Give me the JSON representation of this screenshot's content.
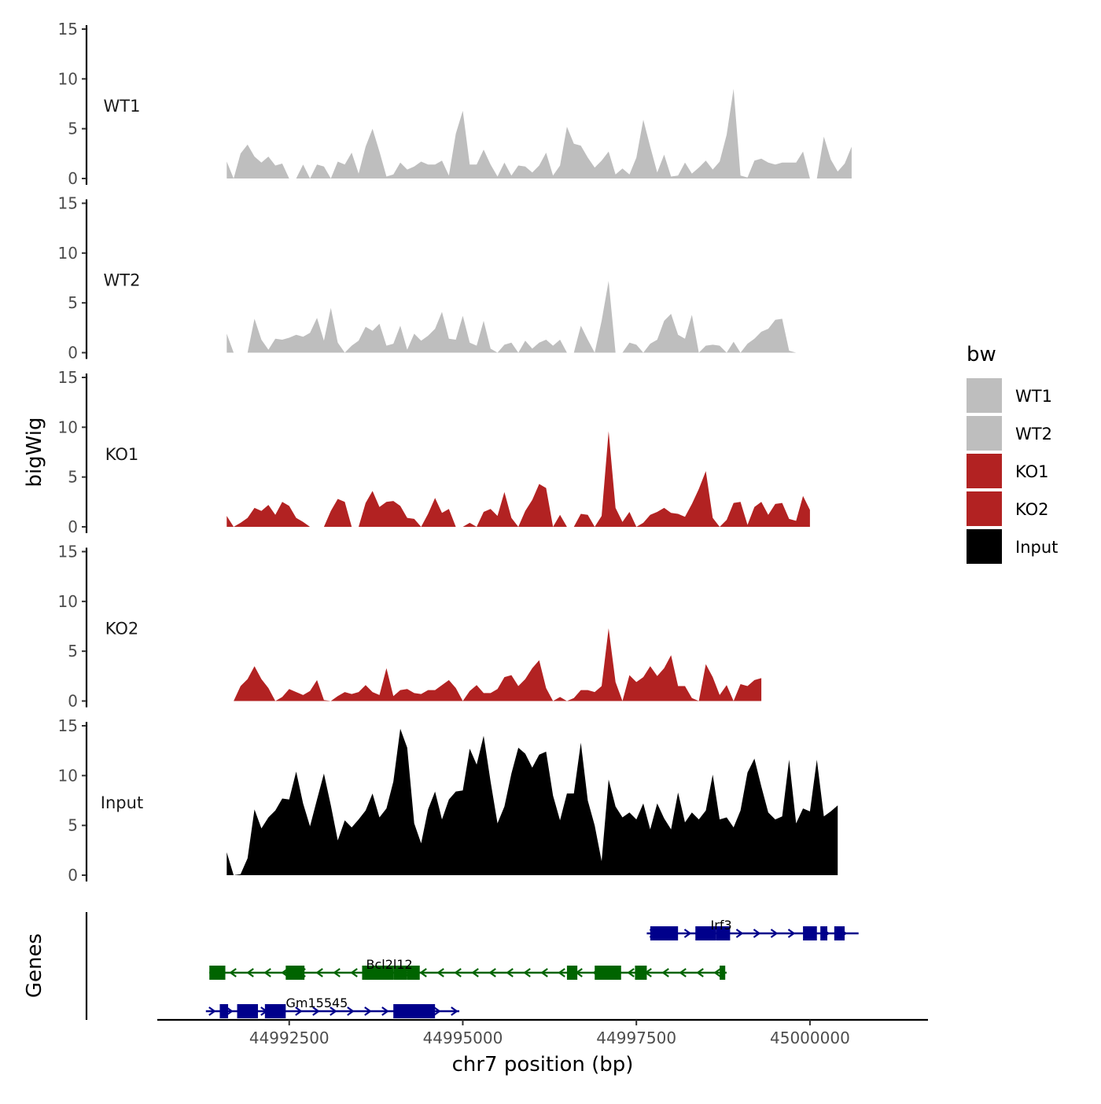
{
  "chart_data": {
    "type": "area",
    "title": "",
    "xlabel": "chr7 position (bp)",
    "ylabel": "bigWig",
    "gene_panel_label": "Genes",
    "xlim": [
      44990600,
      45001700
    ],
    "x_ticks": [
      44992500,
      44995000,
      44997500,
      45000000
    ],
    "x_tick_labels": [
      "44992500",
      "44995000",
      "44997500",
      "45000000"
    ],
    "ylim": [
      0,
      15
    ],
    "y_ticks": [
      0,
      5,
      10,
      15
    ],
    "y_tick_labels": [
      "0",
      "5",
      "10",
      "15"
    ],
    "legend": {
      "title": "bw",
      "position": "right",
      "entries": [
        {
          "label": "WT1",
          "color": "#bebebe"
        },
        {
          "label": "WT2",
          "color": "#bebebe"
        },
        {
          "label": "KO1",
          "color": "#b22222"
        },
        {
          "label": "KO2",
          "color": "#b22222"
        },
        {
          "label": "Input",
          "color": "#000000"
        }
      ]
    },
    "x_start": 44991600,
    "x_step": 100,
    "series": [
      {
        "name": "WT1",
        "color": "#bebebe",
        "values": [
          1.7,
          0,
          2.5,
          3.4,
          2.2,
          1.6,
          2.2,
          1.3,
          1.5,
          0,
          0,
          1.4,
          0,
          1.4,
          1.2,
          0,
          1.7,
          1.4,
          2.6,
          0.5,
          3.2,
          5,
          2.7,
          0.2,
          0.4,
          1.6,
          0.9,
          1.2,
          1.7,
          1.4,
          1.4,
          1.8,
          0.3,
          4.5,
          6.8,
          1.4,
          1.4,
          2.9,
          1.4,
          0.2,
          1.6,
          0.3,
          1.3,
          1.2,
          0.6,
          1.3,
          2.6,
          0.3,
          1.3,
          5.2,
          3.5,
          3.3,
          2.1,
          1.1,
          1.8,
          2.7,
          0.4,
          1,
          0.4,
          2.1,
          5.9,
          3.2,
          0.6,
          2.4,
          0.2,
          0.3,
          1.6,
          0.5,
          1.1,
          1.8,
          0.9,
          1.7,
          4.4,
          9,
          0.3,
          0.1,
          1.8,
          2,
          1.6,
          1.4,
          1.6,
          1.6,
          1.6,
          2.7,
          0,
          0,
          4.2,
          1.9,
          0.7,
          1.5,
          3.2
        ]
      },
      {
        "name": "WT2",
        "color": "#bebebe",
        "values": [
          1.9,
          0,
          0,
          0,
          3.4,
          1.3,
          0.3,
          1.4,
          1.3,
          1.5,
          1.8,
          1.6,
          2,
          3.5,
          1.2,
          4.5,
          1,
          0,
          0.7,
          1.2,
          2.6,
          2.2,
          2.9,
          0.7,
          0.9,
          2.7,
          0.3,
          1.9,
          1.2,
          1.7,
          2.4,
          4.1,
          1.4,
          1.3,
          3.7,
          1,
          0.7,
          3.2,
          0.4,
          0,
          0.8,
          1,
          0,
          1.2,
          0.4,
          1,
          1.3,
          0.7,
          1.3,
          0,
          0,
          2.7,
          1.3,
          0,
          3.2,
          7.2,
          0,
          0,
          1,
          0.8,
          0,
          0.9,
          1.3,
          3.2,
          3.9,
          1.8,
          1.4,
          3.8,
          0,
          0.7,
          0.8,
          0.7,
          0,
          1.1,
          0,
          0.9,
          1.4,
          2.1,
          2.4,
          3.3,
          3.4,
          0.2,
          0
        ]
      },
      {
        "name": "KO1",
        "color": "#b22222",
        "values": [
          1.1,
          0,
          0.4,
          0.9,
          1.9,
          1.6,
          2.2,
          1.2,
          2.5,
          2.1,
          0.9,
          0.5,
          0,
          0,
          0,
          1.6,
          2.8,
          2.5,
          0,
          0,
          2.4,
          3.6,
          2,
          2.5,
          2.6,
          2.1,
          0.9,
          0.8,
          0,
          1.3,
          2.9,
          1.4,
          1.8,
          0,
          0,
          0.4,
          0,
          1.5,
          1.8,
          1.1,
          3.5,
          0.9,
          0,
          1.6,
          2.7,
          4.3,
          3.9,
          0,
          1.2,
          0,
          0,
          1.3,
          1.2,
          0,
          1.1,
          9.6,
          1.9,
          0.5,
          1.5,
          0,
          0.4,
          1.2,
          1.5,
          1.9,
          1.4,
          1.3,
          1,
          2.3,
          3.8,
          5.6,
          0.9,
          0,
          0.7,
          2.4,
          2.5,
          0.2,
          2,
          2.5,
          1.2,
          2.3,
          2.4,
          0.8,
          0.6,
          3.1,
          1.7
        ]
      },
      {
        "name": "KO2",
        "color": "#b22222",
        "values": [
          0,
          0,
          1.5,
          2.2,
          3.5,
          2.2,
          1.3,
          0,
          0.4,
          1.2,
          0.9,
          0.6,
          1,
          2.1,
          0.1,
          0,
          0.5,
          0.9,
          0.7,
          0.9,
          1.6,
          0.9,
          0.6,
          3.3,
          0.5,
          1.1,
          1.2,
          0.8,
          0.7,
          1.1,
          1.1,
          1.6,
          2.1,
          1.3,
          0,
          1,
          1.6,
          0.8,
          0.8,
          1.2,
          2.4,
          2.6,
          1.5,
          2.2,
          3.3,
          4.1,
          1.3,
          0,
          0.4,
          0,
          0.3,
          1.1,
          1.1,
          0.9,
          1.5,
          7.3,
          1.9,
          0,
          2.6,
          1.9,
          2.4,
          3.5,
          2.5,
          3.3,
          4.6,
          1.5,
          1.5,
          0.3,
          0,
          3.7,
          2.4,
          0.6,
          1.6,
          0,
          1.7,
          1.5,
          2.1,
          2.3
        ]
      },
      {
        "name": "Input",
        "color": "#000000",
        "values": [
          2.3,
          0,
          0.1,
          1.7,
          6.6,
          4.7,
          5.8,
          6.5,
          7.7,
          7.6,
          10.4,
          7.2,
          4.9,
          7.6,
          10.2,
          7,
          3.5,
          5.5,
          4.8,
          5.6,
          6.5,
          8.2,
          5.8,
          6.7,
          9.4,
          14.7,
          12.8,
          5.2,
          3.2,
          6.6,
          8.4,
          5.6,
          7.6,
          8.4,
          8.5,
          12.7,
          11.1,
          14,
          9.4,
          5.2,
          6.9,
          10.2,
          12.8,
          12.2,
          10.8,
          12.1,
          12.4,
          8,
          5.5,
          8.2,
          8.2,
          13.3,
          7.5,
          5,
          1.4,
          9.6,
          6.9,
          5.8,
          6.3,
          5.6,
          7.2,
          4.6,
          7.2,
          5.7,
          4.6,
          8.3,
          5.3,
          6.3,
          5.6,
          6.5,
          10.1,
          5.6,
          5.8,
          4.8,
          6.5,
          10.3,
          11.7,
          8.9,
          6.3,
          5.6,
          5.9,
          11.6,
          5.2,
          6.7,
          6.4,
          11.6,
          5.9,
          6.4,
          7
        ]
      }
    ],
    "genes": [
      {
        "name": "Irf3",
        "strand": "+",
        "color": "#00008b",
        "row": 1,
        "start": 44997650,
        "end": 45000700,
        "exons": [
          [
            44997700,
            44998100
          ],
          [
            44998350,
            44998650
          ],
          [
            44998650,
            44998850
          ],
          [
            44999900,
            45000100
          ],
          [
            45000150,
            45000250
          ],
          [
            45000350,
            45000500
          ]
        ]
      },
      {
        "name": "Bcl2l12",
        "strand": "-",
        "color": "#006400",
        "row": 2,
        "start": 44991350,
        "end": 44998800,
        "exons": [
          [
            44991350,
            44991580
          ],
          [
            44992450,
            44992720
          ],
          [
            44993550,
            44994000
          ],
          [
            44994000,
            44994200
          ],
          [
            44994200,
            44994380
          ],
          [
            44996500,
            44996650
          ],
          [
            44996900,
            44997280
          ],
          [
            44997480,
            44997650
          ],
          [
            44998700,
            44998780
          ]
        ]
      },
      {
        "name": "Gm15545",
        "strand": "+",
        "color": "#00008b",
        "row": 3,
        "start": 44991300,
        "end": 44994950,
        "exons": [
          [
            44991500,
            44991620
          ],
          [
            44991750,
            44992050
          ],
          [
            44992150,
            44992450
          ],
          [
            44994000,
            44994600
          ]
        ]
      }
    ]
  }
}
